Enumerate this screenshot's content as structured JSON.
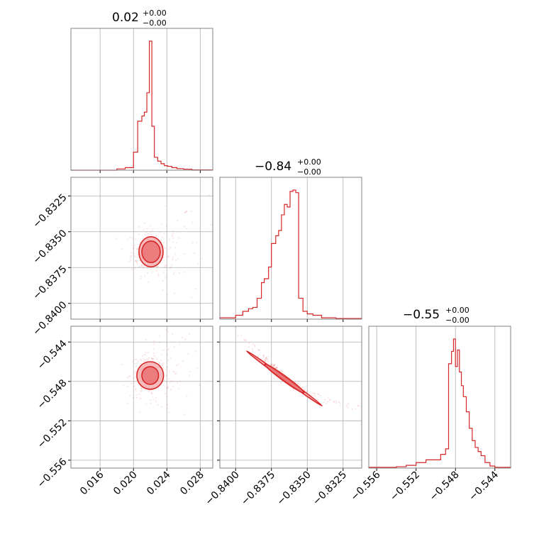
{
  "colors": {
    "series": "#d62728",
    "grid": "#b0b0b0",
    "frame": "#808080",
    "contour_fill_light": "#f4a7a8",
    "contour_fill_mid": "#e8686a"
  },
  "chart_data": {
    "type": "corner",
    "grid": true,
    "parameters": [
      {
        "id": "p0",
        "range": [
          0.0125,
          0.0295
        ],
        "ticks": [
          "0.016",
          "0.020",
          "0.024",
          "0.028"
        ],
        "tick_values": [
          0.016,
          0.02,
          0.024,
          0.028
        ],
        "title": {
          "main": "0.02",
          "upper": "+0.00",
          "lower": "−0.00"
        }
      },
      {
        "id": "p1",
        "range": [
          -0.8411,
          -0.8312
        ],
        "ticks": [
          "−0.8400",
          "−0.8375",
          "−0.8350",
          "−0.8325"
        ],
        "tick_values": [
          -0.84,
          -0.8375,
          -0.835,
          -0.8325
        ],
        "title": {
          "main": "−0.84",
          "upper": "+0.00",
          "lower": "−0.00"
        }
      },
      {
        "id": "p2",
        "range": [
          -0.5568,
          -0.5424
        ],
        "ticks": [
          "−0.556",
          "−0.552",
          "−0.548",
          "−0.544"
        ],
        "tick_values": [
          -0.556,
          -0.552,
          -0.548,
          -0.544
        ],
        "title": {
          "main": "−0.55",
          "upper": "+0.00",
          "lower": "−0.00"
        }
      }
    ],
    "histograms": [
      {
        "param": 0,
        "edges": [
          0.0125,
          0.018,
          0.019,
          0.02,
          0.0205,
          0.021,
          0.0213,
          0.0216,
          0.0219,
          0.0222,
          0.0225,
          0.0229,
          0.0233,
          0.0237,
          0.0241,
          0.0246,
          0.0252,
          0.026,
          0.027,
          0.0295
        ],
        "counts": [
          0.0,
          0.01,
          0.02,
          0.14,
          0.38,
          0.42,
          0.45,
          0.6,
          1.0,
          0.34,
          0.1,
          0.07,
          0.05,
          0.035,
          0.03,
          0.02,
          0.012,
          0.008,
          0.002
        ]
      },
      {
        "param": 1,
        "edges": [
          -0.8411,
          -0.84,
          -0.8395,
          -0.8391,
          -0.8388,
          -0.8385,
          -0.8382,
          -0.838,
          -0.8377,
          -0.8375,
          -0.8372,
          -0.837,
          -0.8368,
          -0.8366,
          -0.8364,
          -0.8362,
          -0.836,
          -0.8358,
          -0.8356,
          -0.8353,
          -0.835,
          -0.8346,
          -0.834,
          -0.833,
          -0.8312
        ],
        "counts": [
          0.01,
          0.03,
          0.06,
          0.08,
          0.09,
          0.16,
          0.28,
          0.31,
          0.4,
          0.58,
          0.64,
          0.68,
          0.8,
          0.88,
          0.86,
          0.98,
          0.99,
          0.97,
          0.16,
          0.06,
          0.04,
          0.03,
          0.01,
          0.005
        ]
      },
      {
        "param": 2,
        "edges": [
          -0.5568,
          -0.554,
          -0.553,
          -0.552,
          -0.551,
          -0.55,
          -0.5495,
          -0.549,
          -0.5487,
          -0.5484,
          -0.5482,
          -0.548,
          -0.5478,
          -0.5476,
          -0.5474,
          -0.5472,
          -0.5469,
          -0.5466,
          -0.5463,
          -0.546,
          -0.5457,
          -0.5454,
          -0.545,
          -0.5445,
          -0.544,
          -0.5424
        ],
        "counts": [
          0.005,
          0.01,
          0.02,
          0.04,
          0.06,
          0.06,
          0.1,
          0.14,
          0.76,
          0.85,
          0.94,
          0.74,
          0.86,
          0.7,
          0.6,
          0.52,
          0.41,
          0.29,
          0.2,
          0.15,
          0.12,
          0.09,
          0.04,
          0.015,
          0.005
        ]
      }
    ],
    "pairs": [
      {
        "x_param": 0,
        "y_param": 1,
        "center": [
          0.0221,
          -0.8364
        ],
        "spread": [
          0.0012,
          0.0008
        ],
        "correlation": 0.0,
        "scatter_count": 260,
        "contours": [
          {
            "level": 0.39,
            "rx": 0.0011,
            "ry": 0.00075
          },
          {
            "level": 0.86,
            "rx": 0.00145,
            "ry": 0.00105
          }
        ]
      },
      {
        "x_param": 0,
        "y_param": 2,
        "center": [
          0.022,
          -0.5474
        ],
        "spread": [
          0.0012,
          0.0011
        ],
        "correlation": 0.0,
        "scatter_count": 260,
        "contours": [
          {
            "level": 0.39,
            "rx": 0.001,
            "ry": 0.0009
          },
          {
            "level": 0.86,
            "rx": 0.0016,
            "ry": 0.0014
          }
        ]
      },
      {
        "x_param": 1,
        "y_param": 2,
        "center": [
          -0.8366,
          -0.5477
        ],
        "spread": [
          0.0013,
          0.0019
        ],
        "correlation": -0.99,
        "scatter_count": 220,
        "contours": [
          {
            "level": 0.39,
            "rx": 0.0008,
            "ry": 0.001
          },
          {
            "level": 0.86,
            "rx": 0.0015,
            "ry": 0.002
          }
        ]
      }
    ]
  }
}
